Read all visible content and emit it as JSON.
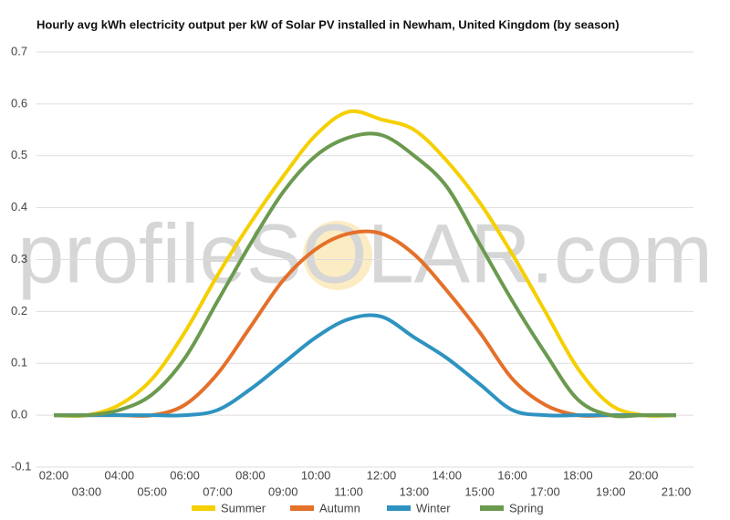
{
  "chart_data": {
    "type": "line",
    "title": "Hourly avg kWh electricity output per kW of Solar PV installed in Newham, United Kingdom (by season)",
    "watermark": "profileSOLAR.com",
    "categories": [
      "02:00",
      "03:00",
      "04:00",
      "05:00",
      "06:00",
      "07:00",
      "08:00",
      "09:00",
      "10:00",
      "11:00",
      "12:00",
      "13:00",
      "14:00",
      "15:00",
      "16:00",
      "17:00",
      "18:00",
      "19:00",
      "20:00",
      "21:00"
    ],
    "series": [
      {
        "name": "Summer",
        "color": "#f5cf00",
        "values": [
          0,
          0,
          0.02,
          0.07,
          0.16,
          0.27,
          0.37,
          0.46,
          0.54,
          0.585,
          0.57,
          0.55,
          0.49,
          0.41,
          0.31,
          0.2,
          0.09,
          0.02,
          0,
          0
        ]
      },
      {
        "name": "Autumn",
        "color": "#e4702a",
        "values": [
          0,
          0,
          0,
          0,
          0.02,
          0.08,
          0.17,
          0.26,
          0.32,
          0.35,
          0.35,
          0.31,
          0.24,
          0.16,
          0.07,
          0.02,
          0,
          0,
          0,
          0
        ]
      },
      {
        "name": "Winter",
        "color": "#2e93c1",
        "values": [
          0,
          0,
          0,
          0,
          0,
          0.01,
          0.05,
          0.1,
          0.15,
          0.185,
          0.19,
          0.15,
          0.11,
          0.06,
          0.01,
          0,
          0,
          0,
          0,
          0
        ]
      },
      {
        "name": "Spring",
        "color": "#6b9a4f",
        "values": [
          0,
          0,
          0.01,
          0.04,
          0.11,
          0.22,
          0.33,
          0.43,
          0.5,
          0.535,
          0.54,
          0.5,
          0.44,
          0.33,
          0.22,
          0.12,
          0.03,
          0,
          0,
          0
        ]
      }
    ],
    "ylim": [
      -0.1,
      0.7
    ],
    "yticks": [
      -0.1,
      {
        "value": 0,
        "label": "0.0"
      },
      0.1,
      0.2,
      0.3,
      0.4,
      0.5,
      0.6,
      0.7
    ],
    "grid": true,
    "legend": "bottom"
  }
}
